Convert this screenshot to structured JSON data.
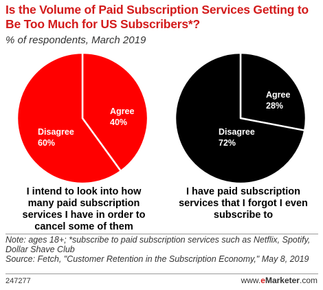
{
  "title": "Is the Volume of Paid Subscription Services Getting to Be Too Much for US Subscribers*?",
  "subtitle": "% of respondents, March 2019",
  "chart_data": [
    {
      "type": "pie",
      "caption": "I intend to look into how many paid subscription services I have in order to cancel some of them",
      "slices": [
        {
          "label": "Agree",
          "value": 40,
          "display": "40%"
        },
        {
          "label": "Disagree",
          "value": 60,
          "display": "60%"
        }
      ],
      "colors": {
        "fill": "#ff0000",
        "border": "#ffffff",
        "text": "#ffffff"
      }
    },
    {
      "type": "pie",
      "caption": "I have paid subscription services that I forgot I even subscribe to",
      "slices": [
        {
          "label": "Agree",
          "value": 28,
          "display": "28%"
        },
        {
          "label": "Disagree",
          "value": 72,
          "display": "72%"
        }
      ],
      "colors": {
        "fill": "#000000",
        "border": "#ffffff",
        "text": "#ffffff"
      }
    }
  ],
  "notes": {
    "note": "Note: ages 18+; *subscribe to paid subscription services such as Netflix, Spotify, Dollar Shave Club",
    "source": "Source: Fetch, \"Customer Retention in the Subscription Economy,\" May 8, 2019"
  },
  "footer": {
    "chart_id": "247277",
    "brand_prefix": "www.",
    "brand_e": "e",
    "brand_main": "Marketer",
    "brand_suffix": ".com"
  }
}
